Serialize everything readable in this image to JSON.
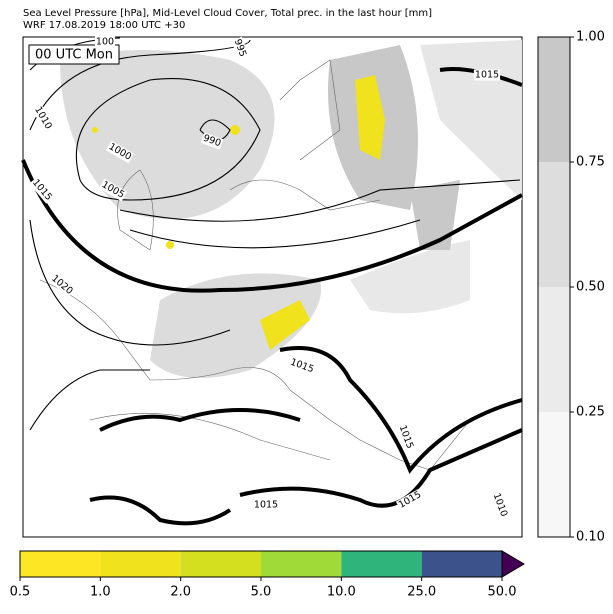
{
  "header": {
    "title": "Sea Level Pressure [hPa], Mid-Level Cloud Cover, Total prec. in the last hour [mm]",
    "subtitle": "WRF 17.08.2019 18:00 UTC +30"
  },
  "map": {
    "time_label": "00 UTC Mon",
    "isobar_labels": [
      "100",
      "995",
      "1010",
      "990",
      "1000",
      "1005",
      "1015",
      "1020",
      "1015",
      "1015",
      "1015",
      "1015",
      "1015",
      "1010"
    ]
  },
  "cloud_colorbar": {
    "ticks": [
      "0.10",
      "0.25",
      "0.50",
      "0.75",
      "1.00"
    ],
    "colors": [
      "#f7f7f7",
      "#ebebeb",
      "#dddddd",
      "#c8c8c8"
    ]
  },
  "precip_colorbar": {
    "ticks": [
      "0.5",
      "1.0",
      "2.0",
      "5.0",
      "10.0",
      "25.0",
      "50.0"
    ],
    "colors": [
      "#fde725",
      "#f0e21d",
      "#d4e01f",
      "#a0da39",
      "#2fb47c",
      "#3b528b"
    ],
    "extend_color": "#440154"
  }
}
